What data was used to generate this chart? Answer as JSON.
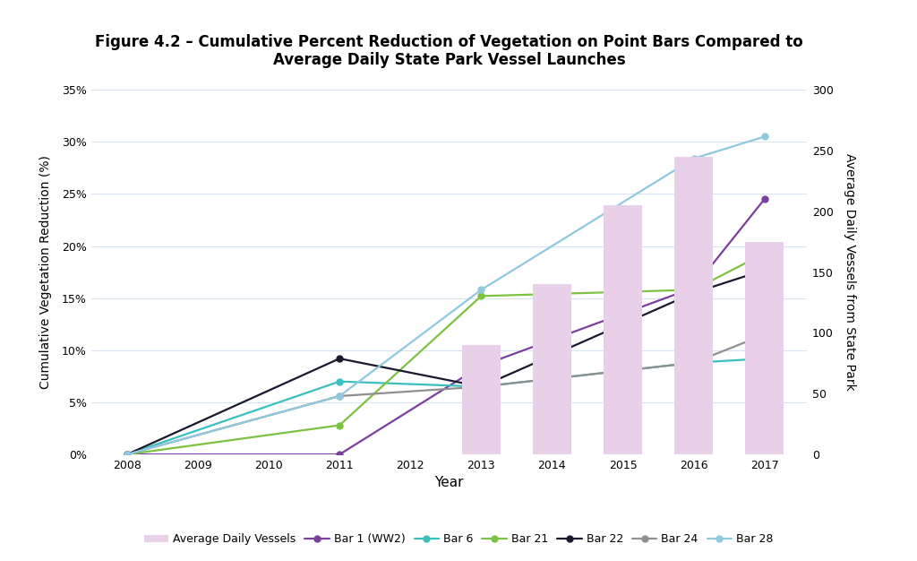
{
  "title_line1": "Figure 4.2 – Cumulative Percent Reduction of Vegetation on Point Bars Compared to",
  "title_line2": "Average Daily State Park Vessel Launches",
  "xlabel": "Year",
  "ylabel_left": "Cumulative Vegetation Reduction (%)",
  "ylabel_right": "Average Daily Vessels from State Park",
  "years_line": [
    2008,
    2011,
    2013,
    2016,
    2017
  ],
  "bar1_ww2": [
    0.0,
    0.0,
    0.085,
    0.16,
    0.245
  ],
  "bar6": [
    0.0,
    0.07,
    0.065,
    0.088,
    0.092
  ],
  "bar21": [
    0.0,
    0.028,
    0.152,
    0.158,
    0.193
  ],
  "bar22": [
    0.0,
    0.092,
    0.065,
    0.155,
    0.177
  ],
  "bar24": [
    0.0,
    0.056,
    0.065,
    0.088,
    0.115
  ],
  "bar28": [
    0.0,
    0.056,
    0.158,
    0.284,
    0.305
  ],
  "bar_years": [
    2013,
    2014,
    2015,
    2016,
    2017
  ],
  "avg_daily_vessels": [
    90,
    140,
    205,
    245,
    175
  ],
  "color_bar1": "#7B3FA0",
  "color_bar6": "#3BBFBF",
  "color_bar21": "#7DC242",
  "color_bar22": "#1A1A2E",
  "color_bar24": "#909090",
  "color_bar28": "#90C8E0",
  "color_avg_bar": "#E8D0E8",
  "ylim_left": [
    0,
    0.35
  ],
  "ylim_right": [
    0,
    300
  ],
  "yticks_left": [
    0,
    0.05,
    0.1,
    0.15,
    0.2,
    0.25,
    0.3,
    0.35
  ],
  "ytick_labels_left": [
    "0%",
    "5%",
    "10%",
    "15%",
    "20%",
    "25%",
    "30%",
    "35%"
  ],
  "yticks_right": [
    0,
    50,
    100,
    150,
    200,
    250,
    300
  ],
  "xticks": [
    2008,
    2009,
    2010,
    2011,
    2012,
    2013,
    2014,
    2015,
    2016,
    2017
  ],
  "xlim": [
    2007.5,
    2017.6
  ],
  "background_color": "#FFFFFF",
  "grid_color": "#D8E4F0"
}
